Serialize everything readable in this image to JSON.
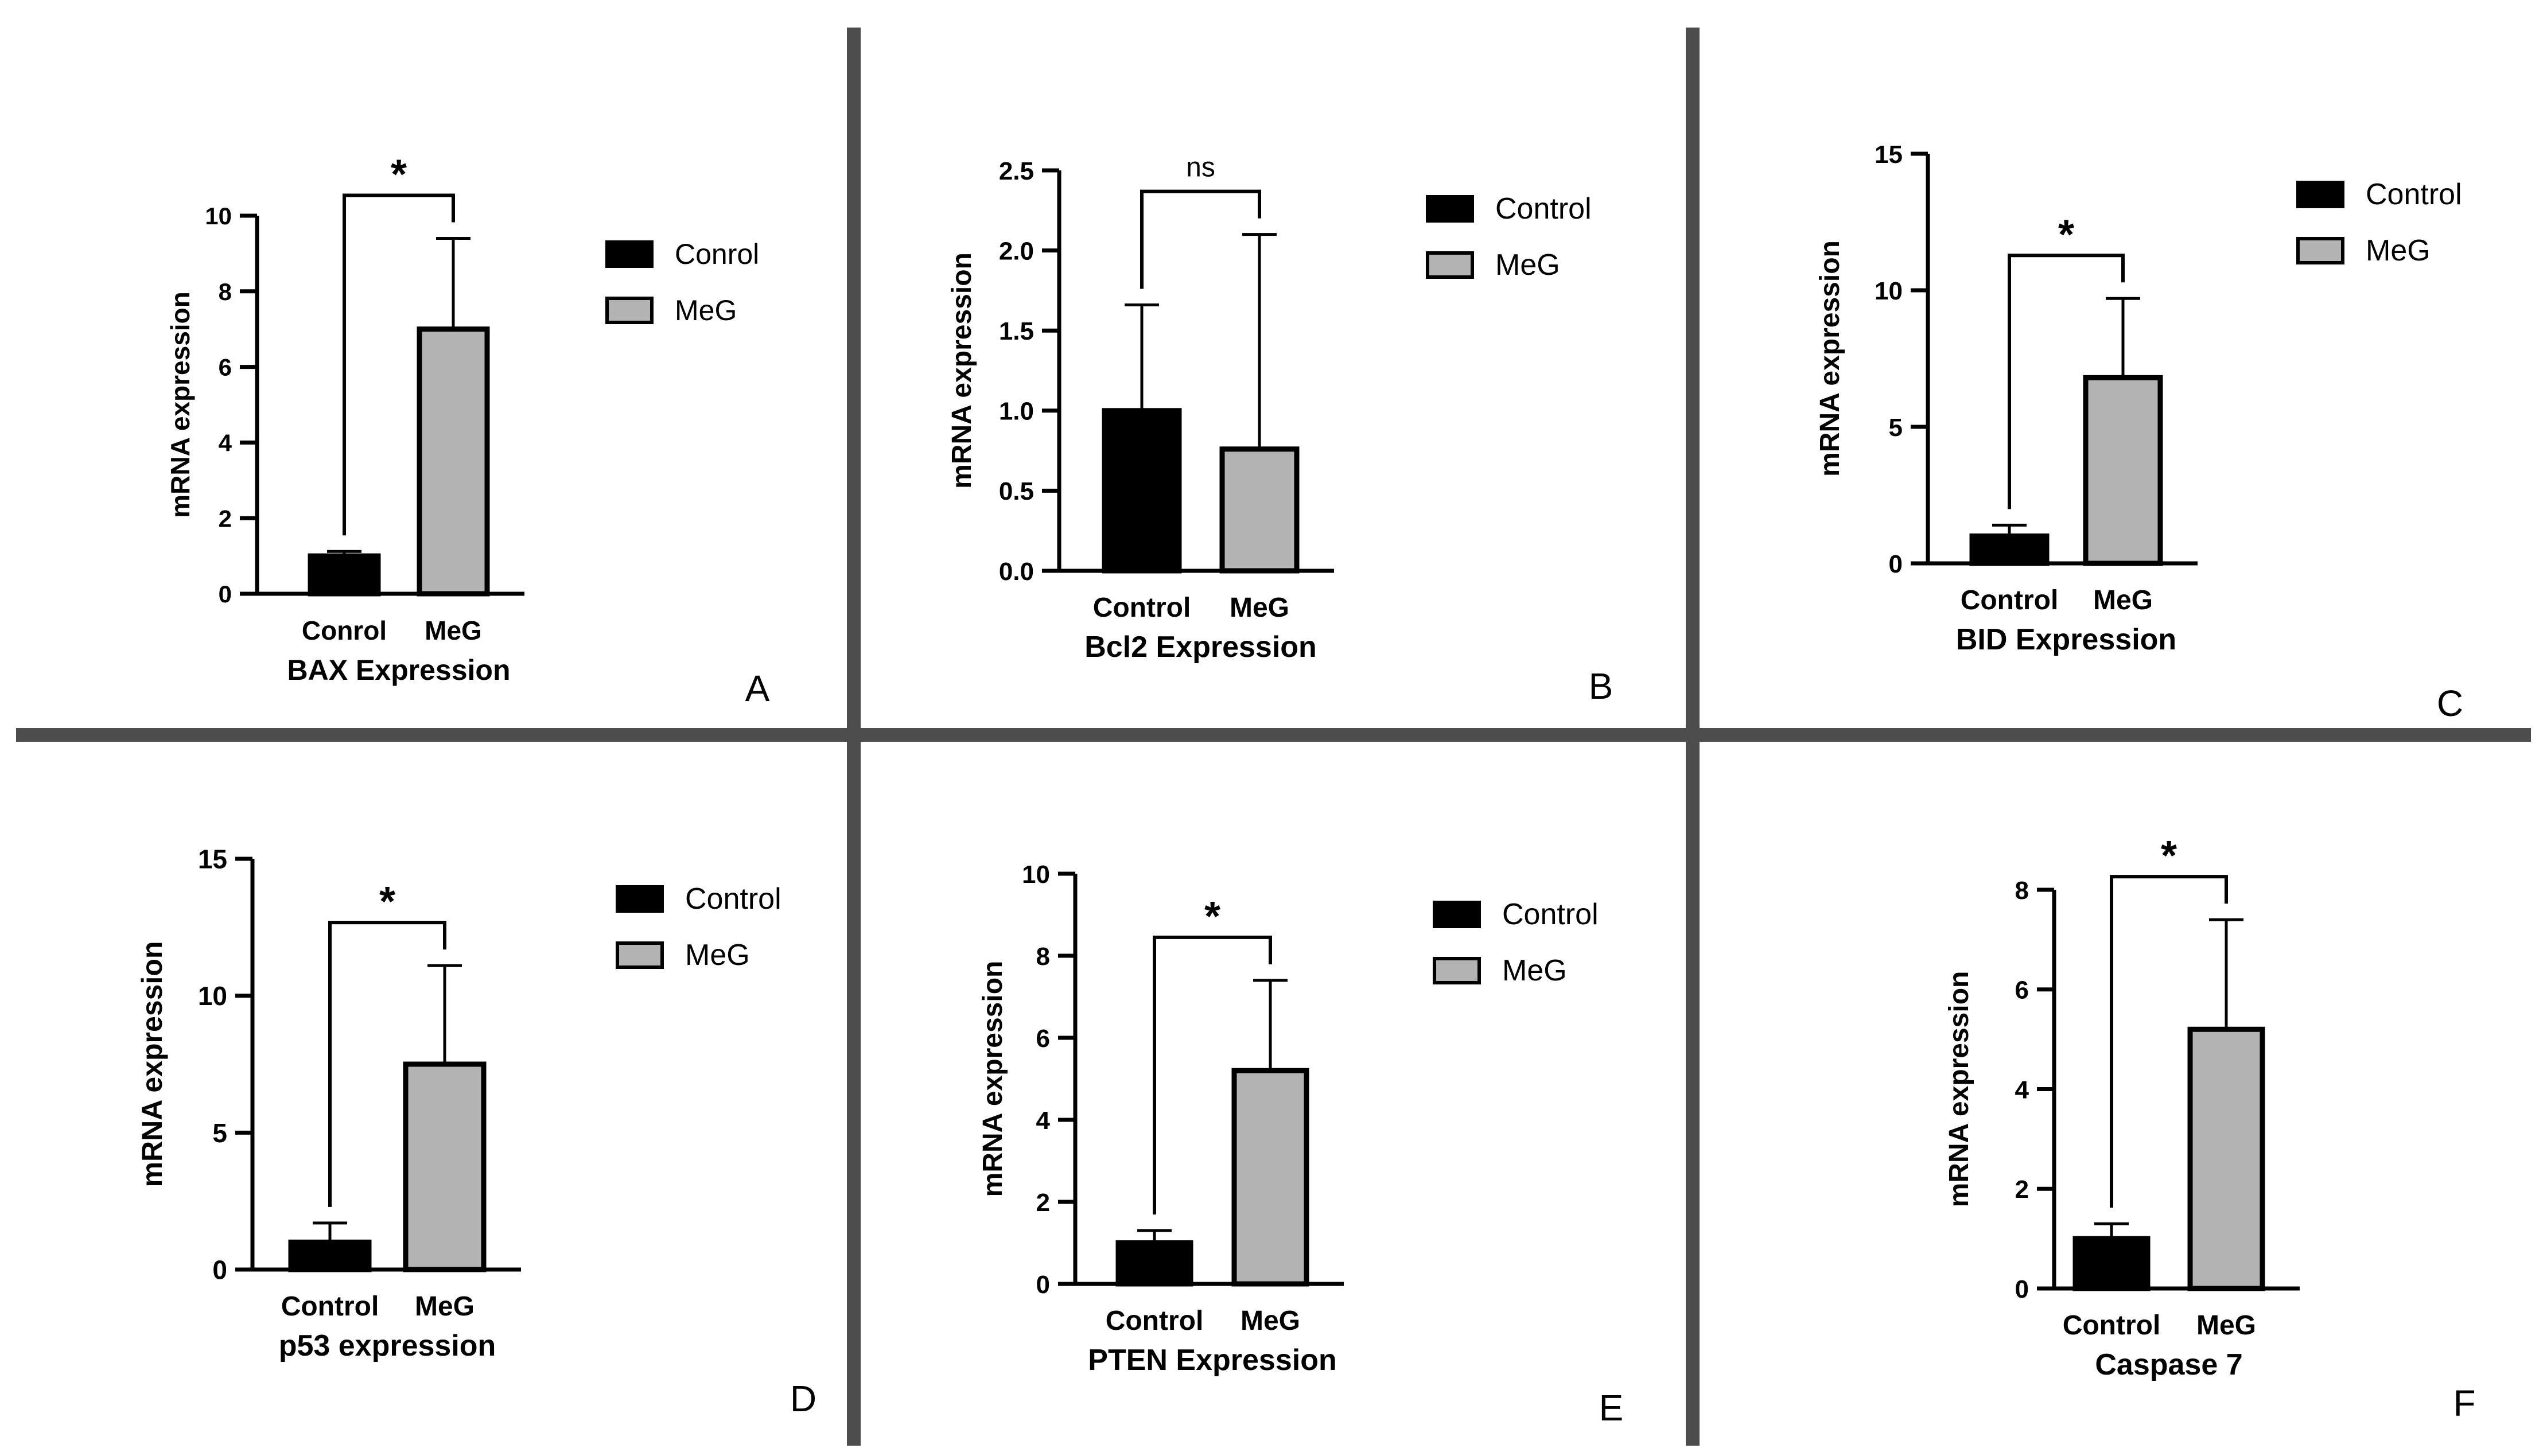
{
  "figure": {
    "colors": {
      "divider": "#4d4d4d",
      "axis": "#000000",
      "control_fill": "#000000",
      "meg_fill": "#b3b3b3",
      "text": "#000000"
    }
  },
  "chart_data": [
    {
      "panel_letter": "A",
      "type": "bar",
      "title": "BAX Expression",
      "ylabel": "mRNA expression",
      "ylim": [
        0,
        10
      ],
      "yticks": [
        0,
        2,
        4,
        6,
        8,
        10
      ],
      "categories": [
        "Conrol",
        "MeG"
      ],
      "values": [
        1,
        7
      ],
      "errors": [
        0.12,
        2.4
      ],
      "significance": "*",
      "legend": [
        "Conrol",
        "MeG"
      ]
    },
    {
      "panel_letter": "B",
      "type": "bar",
      "title": "Bcl2 Expression",
      "ylabel": "mRNA expression",
      "ylim": [
        0,
        2.5
      ],
      "yticks": [
        "0.0",
        "0.5",
        "1.0",
        "1.5",
        "2.0",
        "2.5"
      ],
      "categories": [
        "Control",
        "MeG"
      ],
      "values": [
        1.0,
        0.76
      ],
      "errors": [
        0.66,
        1.34
      ],
      "significance": "ns",
      "legend": [
        "Control",
        "MeG"
      ]
    },
    {
      "panel_letter": "C",
      "type": "bar",
      "title": "BID Expression",
      "ylabel": "mRNA expression",
      "ylim": [
        0,
        15
      ],
      "yticks": [
        0,
        5,
        10,
        15
      ],
      "categories": [
        "Control",
        "MeG"
      ],
      "values": [
        1,
        6.8
      ],
      "errors": [
        0.4,
        2.9
      ],
      "significance": "*",
      "legend": [
        "Control",
        "MeG"
      ]
    },
    {
      "panel_letter": "D",
      "type": "bar",
      "title": "p53 expression",
      "ylabel": "mRNA expression",
      "ylim": [
        0,
        15
      ],
      "yticks": [
        0,
        5,
        10,
        15
      ],
      "categories": [
        "Control",
        "MeG"
      ],
      "values": [
        1,
        7.5
      ],
      "errors": [
        0.7,
        3.6
      ],
      "significance": "*",
      "legend": [
        "Control",
        "MeG"
      ]
    },
    {
      "panel_letter": "E",
      "type": "bar",
      "title": "PTEN Expression",
      "ylabel": "mRNA expression",
      "ylim": [
        0,
        10
      ],
      "yticks": [
        0,
        2,
        4,
        6,
        8,
        10
      ],
      "categories": [
        "Control",
        "MeG"
      ],
      "values": [
        1,
        5.2
      ],
      "errors": [
        0.3,
        2.2
      ],
      "significance": "*",
      "legend": [
        "Control",
        "MeG"
      ]
    },
    {
      "panel_letter": "F",
      "type": "bar",
      "title": "Caspase 7",
      "ylabel": "mRNA expression",
      "ylim": [
        0,
        8
      ],
      "yticks": [
        0,
        2,
        4,
        6,
        8
      ],
      "categories": [
        "Control",
        "MeG"
      ],
      "values": [
        1,
        5.2
      ],
      "errors": [
        0.3,
        2.2
      ],
      "significance": "*",
      "legend": null
    }
  ]
}
